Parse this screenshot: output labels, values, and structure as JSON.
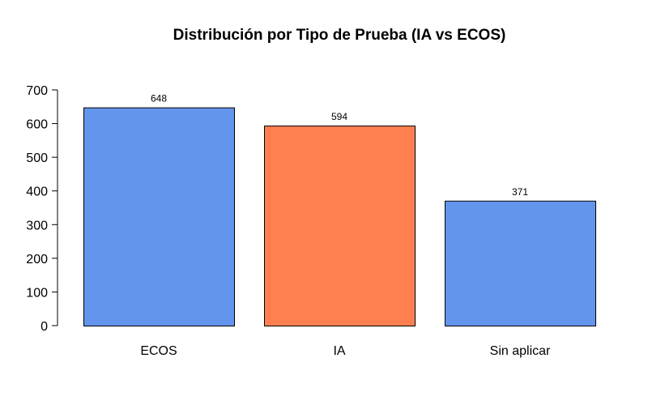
{
  "chart_data": {
    "type": "bar",
    "title": "Distribución por Tipo de Prueba (IA vs ECOS)",
    "xlabel": "",
    "ylabel": "",
    "categories": [
      "ECOS",
      "IA",
      "Sin aplicar"
    ],
    "values": [
      648,
      594,
      371
    ],
    "data_labels": [
      "648",
      "594",
      "371"
    ],
    "bar_colors": [
      "#6495ED",
      "#FF7F50",
      "#6495ED"
    ],
    "ylim": [
      0,
      700
    ],
    "y_ticks": [
      0,
      100,
      200,
      300,
      400,
      500,
      600,
      700
    ],
    "y_tick_labels": [
      "0",
      "100",
      "200",
      "300",
      "400",
      "500",
      "600",
      "700"
    ],
    "grid": false,
    "legend": "none"
  }
}
